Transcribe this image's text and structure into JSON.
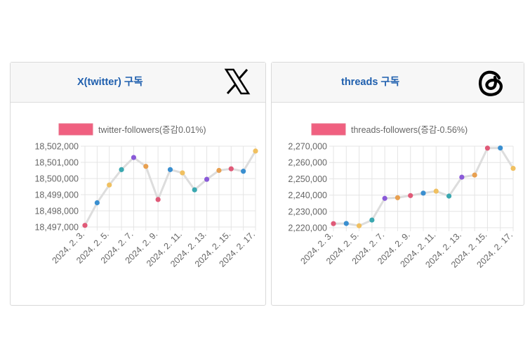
{
  "cards": [
    {
      "title": "X(twitter) 구독",
      "logo": "x-logo",
      "accent": "#1f5fae"
    },
    {
      "title": "threads 구독",
      "logo": "threads-logo",
      "accent": "#1f5fae"
    }
  ],
  "chart_data": [
    {
      "type": "line",
      "legend": "twitter-followers(증감0.01%)",
      "legend_color": "#f06080",
      "line_color": "#dddddd",
      "categories": [
        "2024. 2. 3.",
        "2024. 2. 4.",
        "2024. 2. 5.",
        "2024. 2. 6.",
        "2024. 2. 7.",
        "2024. 2. 8.",
        "2024. 2. 9.",
        "2024. 2. 10.",
        "2024. 2. 11.",
        "2024. 2. 12.",
        "2024. 2. 13.",
        "2024. 2. 14.",
        "2024. 2. 15.",
        "2024. 2. 16.",
        "2024. 2. 17."
      ],
      "x_tick_labels": [
        "2024. 2. 3.",
        "2024. 2. 5.",
        "2024. 2. 7.",
        "2024. 2. 9.",
        "2024. 2. 11.",
        "2024. 2. 13.",
        "2024. 2. 15.",
        "2024. 2. 17."
      ],
      "values": [
        18497100,
        18498500,
        18499600,
        18500550,
        18501300,
        18500750,
        18498700,
        18500550,
        18500350,
        18499300,
        18499950,
        18500500,
        18500600,
        18500450,
        18501700
      ],
      "point_colors": [
        "#e05a78",
        "#3a8fd0",
        "#f0c060",
        "#3aa8b0",
        "#8a5ad8",
        "#e8a050",
        "#e05a78",
        "#3a8fd0",
        "#f0c060",
        "#3aa8b0",
        "#8a5ad8",
        "#e8a050",
        "#e05a78",
        "#3a8fd0",
        "#f0c060"
      ],
      "yticks": [
        "18,497,000",
        "18,498,000",
        "18,499,000",
        "18,500,000",
        "18,501,000",
        "18,502,000"
      ],
      "ylim": [
        18497000,
        18502000
      ],
      "grid": true,
      "legend_position": "top"
    },
    {
      "type": "line",
      "legend": "threads-followers(증감-0.56%)",
      "legend_color": "#f06080",
      "line_color": "#dddddd",
      "categories": [
        "2024. 2. 3.",
        "2024. 2. 4.",
        "2024. 2. 5.",
        "2024. 2. 6.",
        "2024. 2. 7.",
        "2024. 2. 8.",
        "2024. 2. 9.",
        "2024. 2. 10.",
        "2024. 2. 11.",
        "2024. 2. 12.",
        "2024. 2. 13.",
        "2024. 2. 14.",
        "2024. 2. 15.",
        "2024. 2. 16.",
        "2024. 2. 17."
      ],
      "x_tick_labels": [
        "2024. 2. 3.",
        "2024. 2. 5.",
        "2024. 2. 7.",
        "2024. 2. 9.",
        "2024. 2. 11.",
        "2024. 2. 13.",
        "2024. 2. 15.",
        "2024. 2. 17."
      ],
      "values": [
        2222500,
        2222600,
        2221200,
        2224700,
        2238000,
        2238400,
        2239700,
        2241200,
        2242400,
        2239400,
        2251000,
        2252300,
        2268800,
        2268900,
        2256400
      ],
      "point_colors": [
        "#e05a78",
        "#3a8fd0",
        "#f0c060",
        "#3aa8b0",
        "#8a5ad8",
        "#e8a050",
        "#e05a78",
        "#3a8fd0",
        "#f0c060",
        "#3aa8b0",
        "#8a5ad8",
        "#e8a050",
        "#e05a78",
        "#3a8fd0",
        "#f0c060"
      ],
      "yticks": [
        "2,220,000",
        "2,230,000",
        "2,240,000",
        "2,250,000",
        "2,260,000",
        "2,270,000"
      ],
      "ylim": [
        2220000,
        2270000
      ],
      "grid": true,
      "legend_position": "top"
    }
  ]
}
